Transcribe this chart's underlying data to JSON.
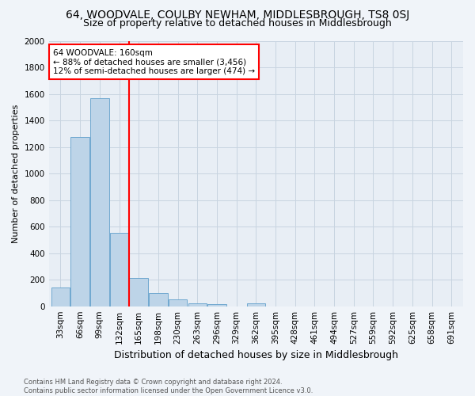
{
  "title": "64, WOODVALE, COULBY NEWHAM, MIDDLESBROUGH, TS8 0SJ",
  "subtitle": "Size of property relative to detached houses in Middlesbrough",
  "xlabel": "Distribution of detached houses by size in Middlesbrough",
  "ylabel": "Number of detached properties",
  "footnote": "Contains HM Land Registry data © Crown copyright and database right 2024.\nContains public sector information licensed under the Open Government Licence v3.0.",
  "categories": [
    "33sqm",
    "66sqm",
    "99sqm",
    "132sqm",
    "165sqm",
    "198sqm",
    "230sqm",
    "263sqm",
    "296sqm",
    "329sqm",
    "362sqm",
    "395sqm",
    "428sqm",
    "461sqm",
    "494sqm",
    "527sqm",
    "559sqm",
    "592sqm",
    "625sqm",
    "658sqm",
    "691sqm"
  ],
  "values": [
    140,
    1275,
    1565,
    555,
    215,
    100,
    50,
    20,
    15,
    0,
    20,
    0,
    0,
    0,
    0,
    0,
    0,
    0,
    0,
    0,
    0
  ],
  "bar_color": "#bdd4e8",
  "bar_edge_color": "#6fa8d0",
  "vline_pos": 3.5,
  "vline_color": "red",
  "annotation_text": "64 WOODVALE: 160sqm\n← 88% of detached houses are smaller (3,456)\n12% of semi-detached houses are larger (474) →",
  "annotation_box_color": "white",
  "annotation_box_edge": "red",
  "ylim": [
    0,
    2000
  ],
  "yticks": [
    0,
    200,
    400,
    600,
    800,
    1000,
    1200,
    1400,
    1600,
    1800,
    2000
  ],
  "fig_bg": "#f0f4f9",
  "plot_bg": "#e8eef5",
  "grid_color": "#c8d4e0",
  "title_fontsize": 10,
  "subtitle_fontsize": 9,
  "xlabel_fontsize": 9,
  "ylabel_fontsize": 8,
  "tick_fontsize": 7.5,
  "footnote_fontsize": 6
}
